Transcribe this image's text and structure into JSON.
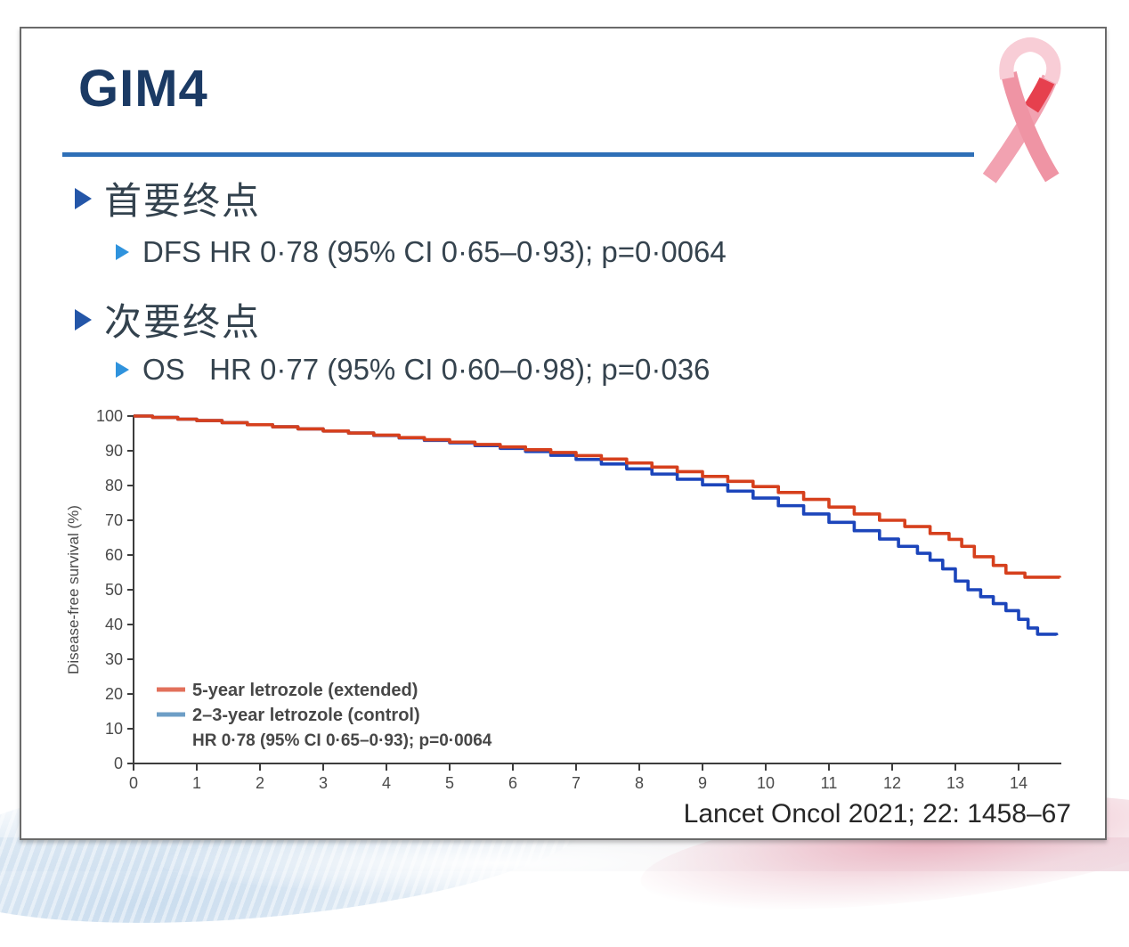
{
  "slide": {
    "title": "GIM4",
    "bullets": [
      {
        "level": 1,
        "text": "首要终点"
      },
      {
        "level": 2,
        "text": "DFS HR 0·78 (95% CI 0·65–0·93); p=0·0064"
      },
      {
        "level": 1,
        "text": "次要终点"
      },
      {
        "level": 2,
        "text": "OS   HR 0·77 (95% CI 0·60–0·98); p=0·036"
      }
    ],
    "citation": "Lancet Oncol 2021; 22: 1458–67"
  },
  "icons": {
    "ribbon": "pink-awareness-ribbon"
  },
  "colors": {
    "title": "#1b3a64",
    "divider": "#2e6fb7",
    "bullet_level1": "#2456a8",
    "bullet_level2": "#2f93dd",
    "body_text": "#35434e",
    "curve_extended": "#d6401d",
    "curve_control": "#1c45bb",
    "ribbon_pink": "#f2a2b1",
    "ribbon_red": "#e6404e"
  },
  "chart_data": {
    "type": "line",
    "subtype": "kaplan-meier",
    "title": "",
    "xlabel": "",
    "ylabel": "Disease-free survival (%)",
    "xlim": [
      0,
      14.8
    ],
    "ylim": [
      0,
      100
    ],
    "x_ticks": [
      0,
      1,
      2,
      3,
      4,
      5,
      6,
      7,
      8,
      9,
      10,
      11,
      12,
      13,
      14
    ],
    "y_ticks": [
      0,
      10,
      20,
      30,
      40,
      50,
      60,
      70,
      80,
      90,
      100
    ],
    "grid": false,
    "axis_color": "#3d3d3d",
    "legend_position": "lower-left",
    "legend_note": "HR 0·78 (95% CI 0·65–0·93); p=0·0064",
    "series": [
      {
        "name": "5-year letrozole (extended)",
        "color": "#d6401d",
        "legend_color": "#e2705b",
        "points": [
          [
            0,
            100
          ],
          [
            0.3,
            99.6
          ],
          [
            0.7,
            99.1
          ],
          [
            1,
            98.7
          ],
          [
            1.4,
            98.1
          ],
          [
            1.8,
            97.5
          ],
          [
            2.2,
            96.9
          ],
          [
            2.6,
            96.3
          ],
          [
            3,
            95.7
          ],
          [
            3.4,
            95.1
          ],
          [
            3.8,
            94.5
          ],
          [
            4.2,
            93.8
          ],
          [
            4.6,
            93.2
          ],
          [
            5,
            92.5
          ],
          [
            5.4,
            91.8
          ],
          [
            5.8,
            91.1
          ],
          [
            6.2,
            90.3
          ],
          [
            6.6,
            89.5
          ],
          [
            7,
            88.6
          ],
          [
            7.4,
            87.6
          ],
          [
            7.8,
            86.5
          ],
          [
            8.2,
            85.3
          ],
          [
            8.6,
            84.0
          ],
          [
            9,
            82.6
          ],
          [
            9.4,
            81.2
          ],
          [
            9.8,
            79.7
          ],
          [
            10.2,
            78.0
          ],
          [
            10.6,
            76.0
          ],
          [
            11,
            73.8
          ],
          [
            11.4,
            71.8
          ],
          [
            11.8,
            70.0
          ],
          [
            12.2,
            68.2
          ],
          [
            12.6,
            66.2
          ],
          [
            12.9,
            64.5
          ],
          [
            13.1,
            62.5
          ],
          [
            13.3,
            59.5
          ],
          [
            13.6,
            57.0
          ],
          [
            13.8,
            54.8
          ],
          [
            14.1,
            53.6
          ],
          [
            14.65,
            53.5
          ]
        ]
      },
      {
        "name": "2–3-year letrozole (control)",
        "color": "#1c45bb",
        "legend_color": "#6d9ec6",
        "points": [
          [
            0,
            100
          ],
          [
            0.3,
            99.6
          ],
          [
            0.7,
            99.1
          ],
          [
            1,
            98.7
          ],
          [
            1.4,
            98.1
          ],
          [
            1.8,
            97.5
          ],
          [
            2.2,
            96.9
          ],
          [
            2.6,
            96.3
          ],
          [
            3,
            95.7
          ],
          [
            3.4,
            95.1
          ],
          [
            3.8,
            94.4
          ],
          [
            4.2,
            93.7
          ],
          [
            4.6,
            93.0
          ],
          [
            5,
            92.3
          ],
          [
            5.4,
            91.5
          ],
          [
            5.8,
            90.7
          ],
          [
            6.2,
            89.8
          ],
          [
            6.6,
            88.7
          ],
          [
            7,
            87.5
          ],
          [
            7.4,
            86.2
          ],
          [
            7.8,
            84.8
          ],
          [
            8.2,
            83.3
          ],
          [
            8.6,
            81.8
          ],
          [
            9,
            80.2
          ],
          [
            9.4,
            78.4
          ],
          [
            9.8,
            76.4
          ],
          [
            10.2,
            74.2
          ],
          [
            10.6,
            71.8
          ],
          [
            11,
            69.4
          ],
          [
            11.4,
            67.0
          ],
          [
            11.8,
            64.6
          ],
          [
            12.1,
            62.5
          ],
          [
            12.4,
            60.5
          ],
          [
            12.6,
            58.5
          ],
          [
            12.8,
            56.0
          ],
          [
            13,
            52.5
          ],
          [
            13.2,
            50.0
          ],
          [
            13.4,
            48.0
          ],
          [
            13.6,
            46.0
          ],
          [
            13.8,
            44.0
          ],
          [
            14,
            41.5
          ],
          [
            14.15,
            39.0
          ],
          [
            14.3,
            37.2
          ],
          [
            14.6,
            36.9
          ]
        ]
      }
    ]
  }
}
